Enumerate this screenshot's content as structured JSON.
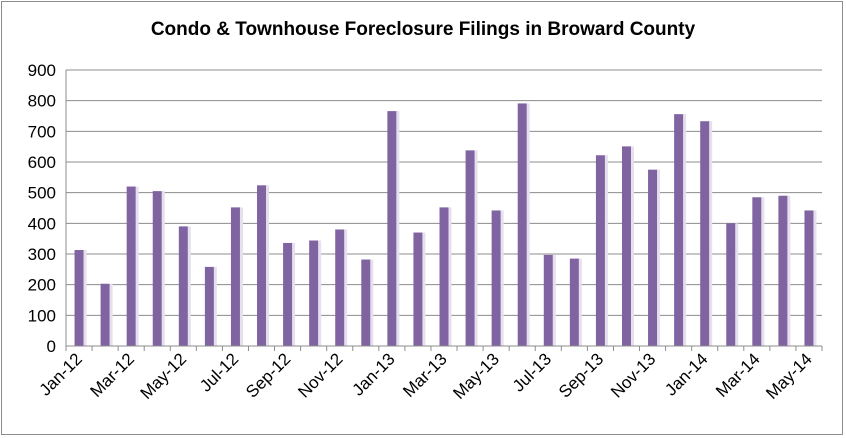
{
  "chart_data": {
    "type": "bar",
    "title": "Condo & Townhouse Foreclosure Filings in Broward County",
    "xlabel": "",
    "ylabel": "",
    "ylim": [
      0,
      900
    ],
    "yticks": [
      0,
      100,
      200,
      300,
      400,
      500,
      600,
      700,
      800,
      900
    ],
    "grid": true,
    "legend": "none",
    "bar_color": "#8064a2",
    "categories": [
      "Jan-12",
      "Feb-12",
      "Mar-12",
      "Apr-12",
      "May-12",
      "Jun-12",
      "Jul-12",
      "Aug-12",
      "Sep-12",
      "Oct-12",
      "Nov-12",
      "Dec-12",
      "Jan-13",
      "Feb-13",
      "Mar-13",
      "Apr-13",
      "May-13",
      "Jun-13",
      "Jul-13",
      "Aug-13",
      "Sep-13",
      "Oct-13",
      "Nov-13",
      "Dec-13",
      "Jan-14",
      "Feb-14",
      "Mar-14",
      "Apr-14",
      "May-14"
    ],
    "shown_category_labels": [
      "Jan-12",
      "Mar-12",
      "May-12",
      "Jul-12",
      "Sep-12",
      "Nov-12",
      "Jan-13",
      "Mar-13",
      "May-13",
      "Jul-13",
      "Sep-13",
      "Nov-13",
      "Jan-14",
      "Mar-14",
      "May-14"
    ],
    "values": [
      313,
      203,
      520,
      505,
      390,
      258,
      452,
      524,
      336,
      344,
      380,
      282,
      766,
      370,
      452,
      638,
      442,
      791,
      297,
      285,
      622,
      651,
      575,
      756,
      733,
      400,
      485,
      490,
      442
    ]
  }
}
